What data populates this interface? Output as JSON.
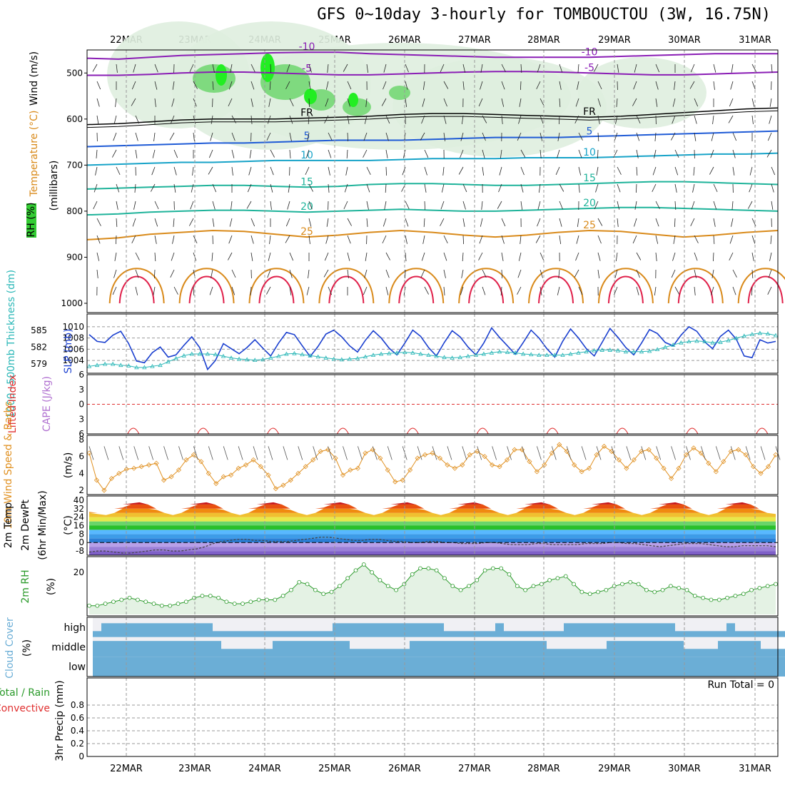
{
  "title": "GFS 0~10day 3-hourly for TOMBOUCTOU (3W, 16.75N)",
  "colors": {
    "rh_green": "#33cc33",
    "temp_purple": "#8a1db5",
    "temp_blue": "#1f5bd6",
    "temp_cyan": "#17a3c8",
    "temp_teal": "#1eb39a",
    "temp_orange": "#d98a1a",
    "temp_red": "#e0204a",
    "slp": "#1a3fcf",
    "thick": "#2ab7b7",
    "lifted": "#e03030",
    "cape": "#b070d0",
    "wind10": "#e09020",
    "rh2m": "#2a9a2a",
    "cloud": "#6baed6",
    "precip_total": "#2a9a2a",
    "precip_conv": "#e03030"
  },
  "chart_data": {
    "dates": [
      "22MAR",
      "23MAR",
      "24MAR",
      "25MAR",
      "26MAR",
      "27MAR",
      "28MAR",
      "29MAR",
      "30MAR",
      "31MAR"
    ],
    "panels": [
      {
        "id": "upper_air",
        "type": "contour",
        "labels": [
          "RH (%)",
          "Temperature (°C)",
          "Wind (m/s)"
        ],
        "ylabel": "(millibars)",
        "yticks": [
          "500",
          "600",
          "700",
          "800",
          "900",
          "1000"
        ],
        "yrange": [
          450,
          1000
        ],
        "freezing_label": "FR",
        "isotherms": [
          {
            "label": "-10",
            "pressures": [
              468,
              470,
              466,
              462,
              460,
              458,
              456,
              455,
              455,
              458,
              460,
              462,
              464,
              466,
              466,
              466,
              466,
              464,
              462,
              460,
              458,
              458,
              458
            ]
          },
          {
            "label": "-5",
            "pressures": [
              505,
              505,
              503,
              500,
              498,
              498,
              500,
              502,
              504,
              504,
              502,
              500,
              498,
              497,
              497,
              498,
              500,
              502,
              504,
              504,
              502,
              500,
              498
            ]
          },
          {
            "label": "FR",
            "pressures": [
              612,
              610,
              606,
              602,
              600,
              600,
              600,
              598,
              596,
              594,
              590,
              588,
              588,
              590,
              592,
              594,
              596,
              594,
              590,
              586,
              582,
              578,
              576
            ]
          },
          {
            "label": "5",
            "pressures": [
              660,
              658,
              656,
              654,
              652,
              652,
              650,
              648,
              646,
              646,
              646,
              644,
              642,
              640,
              640,
              640,
              638,
              636,
              634,
              632,
              630,
              628,
              626
            ]
          },
          {
            "label": "10",
            "pressures": [
              700,
              698,
              696,
              694,
              694,
              692,
              690,
              690,
              690,
              690,
              688,
              686,
              686,
              686,
              684,
              684,
              684,
              682,
              680,
              678,
              676,
              676,
              674
            ]
          },
          {
            "label": "15",
            "pressures": [
              752,
              750,
              748,
              746,
              744,
              744,
              746,
              748,
              746,
              742,
              740,
              740,
              742,
              744,
              744,
              742,
              740,
              738,
              736,
              736,
              738,
              740,
              742
            ]
          },
          {
            "label": "20",
            "pressures": [
              808,
              806,
              802,
              800,
              798,
              798,
              800,
              802,
              800,
              798,
              796,
              798,
              800,
              800,
              798,
              796,
              794,
              792,
              792,
              794,
              796,
              798,
              800
            ]
          },
          {
            "label": "25",
            "pressures": [
              862,
              858,
              850,
              846,
              842,
              844,
              850,
              856,
              852,
              846,
              842,
              846,
              852,
              856,
              852,
              846,
              842,
              844,
              850,
              856,
              852,
              846,
              842
            ]
          }
        ]
      },
      {
        "id": "slp_thickness",
        "type": "line",
        "labels": [
          "1000~500mb Thickness (dm)",
          "SLP (mb)"
        ],
        "left_ticks": [
          "585",
          "582",
          "579"
        ],
        "right_ticks": [
          "1010",
          "1008",
          "1006",
          "1004"
        ],
        "series": [
          {
            "name": "SLP (mb)",
            "axis": "right",
            "values": [
              1008.6,
              1007.4,
              1007.2,
              1008.5,
              1009.2,
              1007.0,
              1003.9,
              1003.6,
              1005.4,
              1006.4,
              1004.6,
              1005.0,
              1006.7,
              1008.2,
              1006.3,
              1002.4,
              1004.0,
              1007.0,
              1006.1,
              1005.2,
              1006.3,
              1007.7,
              1006.2,
              1004.8,
              1007.1,
              1009.0,
              1008.6,
              1006.6,
              1004.7,
              1006.5,
              1008.7,
              1009.4,
              1008.2,
              1006.6,
              1005.5,
              1007.6,
              1009.3,
              1008.0,
              1006.2,
              1005.0,
              1007.1,
              1009.4,
              1008.3,
              1006.3,
              1004.8,
              1007.2,
              1009.3,
              1008.2,
              1006.4,
              1005.0,
              1007.1,
              1009.8,
              1008.1,
              1006.6,
              1005.1,
              1007.2,
              1009.4,
              1008.0,
              1006.1,
              1004.6,
              1007.4,
              1009.6,
              1008.0,
              1006.1,
              1004.8,
              1007.2,
              1009.7,
              1008.1,
              1006.3,
              1005.0,
              1007.1,
              1009.5,
              1008.8,
              1007.2,
              1006.6,
              1008.5,
              1010.0,
              1009.2,
              1007.3,
              1006.1,
              1008.3,
              1009.4,
              1007.8,
              1004.8,
              1004.5,
              1007.7,
              1007.1,
              1007.4
            ]
          },
          {
            "name": "1000~500mb Thickness (dm)",
            "axis": "left",
            "values": [
              578.6,
              578.8,
              579.0,
              579.0,
              578.8,
              578.7,
              578.4,
              578.4,
              578.6,
              578.8,
              579.4,
              580.0,
              580.5,
              580.8,
              580.8,
              580.8,
              580.7,
              580.4,
              580.1,
              579.9,
              579.8,
              579.7,
              579.8,
              580.1,
              580.4,
              580.8,
              580.9,
              580.7,
              580.5,
              580.3,
              580.1,
              579.9,
              579.8,
              579.9,
              580.0,
              580.3,
              580.6,
              580.8,
              580.9,
              581.0,
              581.1,
              581.0,
              580.8,
              580.6,
              580.4,
              580.2,
              580.1,
              580.2,
              580.4,
              580.6,
              580.8,
              581.0,
              581.2,
              581.1,
              581.0,
              580.8,
              580.7,
              580.6,
              580.6,
              580.6,
              580.6,
              580.8,
              581.0,
              581.2,
              581.4,
              581.5,
              581.5,
              581.4,
              581.2,
              581.2,
              581.2,
              581.3,
              581.6,
              582.0,
              582.4,
              582.8,
              583.0,
              583.1,
              583.0,
              582.8,
              582.9,
              583.2,
              583.6,
              584.0,
              584.3,
              584.5,
              584.4,
              584.1
            ]
          }
        ]
      },
      {
        "id": "stability",
        "type": "line",
        "labels": [
          "Lifted Index",
          "CAPE (J/kg)"
        ],
        "ylim": [
          -6,
          6
        ],
        "yticks": [
          "-6",
          "-3",
          "0",
          "3",
          "6"
        ]
      },
      {
        "id": "wind10m",
        "type": "line",
        "labels": [
          "10m Wind Speed & Barbs",
          "(m/s)"
        ],
        "ylim": [
          1.5,
          8.5
        ],
        "yticks": [
          "8",
          "6",
          "4",
          "2"
        ],
        "series": [
          {
            "name": "10m Wind Speed",
            "values": [
              6.4,
              3.2,
              2.0,
              3.4,
              4.0,
              4.5,
              4.6,
              4.8,
              5.0,
              5.2,
              3.2,
              3.6,
              4.4,
              5.6,
              6.2,
              5.4,
              4.0,
              2.8,
              3.6,
              3.8,
              4.6,
              5.0,
              5.6,
              4.8,
              3.8,
              2.2,
              2.6,
              3.2,
              4.0,
              4.8,
              5.6,
              6.6,
              6.8,
              5.8,
              3.8,
              4.4,
              4.6,
              6.4,
              6.8,
              5.8,
              4.4,
              3.0,
              3.2,
              4.4,
              5.8,
              6.2,
              6.4,
              5.8,
              5.0,
              4.6,
              5.0,
              6.2,
              6.6,
              6.0,
              5.0,
              4.8,
              5.6,
              6.8,
              6.8,
              5.4,
              4.2,
              5.0,
              6.4,
              7.4,
              6.6,
              5.0,
              4.2,
              4.6,
              6.2,
              7.2,
              6.6,
              5.6,
              4.6,
              5.6,
              6.6,
              6.8,
              5.8,
              4.6,
              3.4,
              4.6,
              6.2,
              7.0,
              6.4,
              5.2,
              4.2,
              5.4,
              6.6,
              6.8,
              6.2,
              4.8,
              4.0,
              4.8,
              6.2
            ]
          }
        ]
      },
      {
        "id": "temp2m",
        "type": "line",
        "labels": [
          "2m Temp",
          "2m DewPt",
          "(6hr Min/Max)",
          "(°C)"
        ],
        "ylim": [
          -12,
          44
        ],
        "yticks": [
          "40",
          "32",
          "24",
          "16",
          "8",
          "0",
          "-8"
        ],
        "series": [
          {
            "name": "2m Temp",
            "values": [
              29,
              27,
              26,
              28,
              33,
              37,
              38,
              36,
              31,
              28,
              26,
              28,
              33,
              37,
              38,
              36,
              31,
              28,
              26,
              28,
              33,
              37,
              38,
              36,
              31,
              28,
              26,
              28,
              33,
              37,
              38,
              36,
              31,
              28,
              26,
              28,
              33,
              37,
              38,
              36,
              31,
              28,
              26,
              28,
              33,
              37,
              38,
              36,
              31,
              28,
              26,
              28,
              33,
              37,
              38,
              36,
              31,
              28,
              26,
              28,
              33,
              37,
              38,
              36,
              31,
              28,
              26,
              28,
              33,
              37,
              38,
              36,
              31,
              28,
              26,
              28,
              33,
              37,
              38,
              36,
              31,
              28,
              27
            ]
          },
          {
            "name": "2m DewPt",
            "values": [
              -9,
              -8,
              -8,
              -9,
              -10,
              -10,
              -9,
              -8,
              -7,
              -7,
              -8,
              -8,
              -7,
              -6,
              -4,
              -1,
              1,
              2,
              3,
              3,
              2,
              2,
              1,
              1,
              1,
              2,
              3,
              4,
              5,
              5,
              4,
              3,
              2,
              2,
              3,
              3,
              2,
              1,
              1,
              0,
              0,
              1,
              1,
              0,
              0,
              -1,
              -1,
              -1,
              0,
              0,
              -1,
              -2,
              -2,
              -2,
              -1,
              -1,
              -2,
              -2,
              -2,
              -2,
              -1,
              -1,
              -1,
              0,
              0,
              -1,
              -1,
              -2,
              -3,
              -4,
              -3,
              -2,
              -1,
              -1,
              -1,
              -2,
              -3,
              -4,
              -4,
              -3,
              -3,
              -3,
              -3,
              -4
            ]
          }
        ]
      },
      {
        "id": "rh2m",
        "type": "area",
        "labels": [
          "2m RH",
          "(%)"
        ],
        "ylim": [
          0,
          28
        ],
        "yticks": [
          "20"
        ],
        "series": [
          {
            "name": "2m RH",
            "values": [
              3,
              3,
              4,
              5,
              6,
              7,
              6,
              5,
              4,
              3,
              3,
              4,
              5,
              7,
              8,
              8,
              7,
              5,
              4,
              4,
              5,
              6,
              6,
              6,
              8,
              11,
              15,
              14,
              11,
              9,
              10,
              13,
              17,
              21,
              24,
              20,
              16,
              13,
              11,
              14,
              19,
              22,
              22,
              21,
              17,
              13,
              11,
              13,
              16,
              21,
              22,
              22,
              19,
              13,
              11,
              13,
              14,
              16,
              17,
              18,
              14,
              10,
              9,
              10,
              11,
              13,
              14,
              15,
              14,
              11,
              10,
              11,
              13,
              12,
              11,
              8,
              7,
              6,
              6,
              7,
              8,
              9,
              11,
              12,
              13,
              14
            ]
          }
        ]
      },
      {
        "id": "cloud",
        "type": "heatmap",
        "labels": [
          "Cloud Cover",
          "(%)"
        ],
        "levels": [
          "high",
          "middle",
          "low"
        ]
      },
      {
        "id": "precip",
        "type": "bar",
        "labels": [
          "Total / Rain",
          "Convective",
          "3hr Precip (mm)"
        ],
        "ylim": [
          0,
          1
        ],
        "yticks": [
          "0.8",
          "0.6",
          "0.4",
          "0.2",
          "0"
        ],
        "run_total": "Run Total = 0",
        "values": []
      }
    ]
  }
}
